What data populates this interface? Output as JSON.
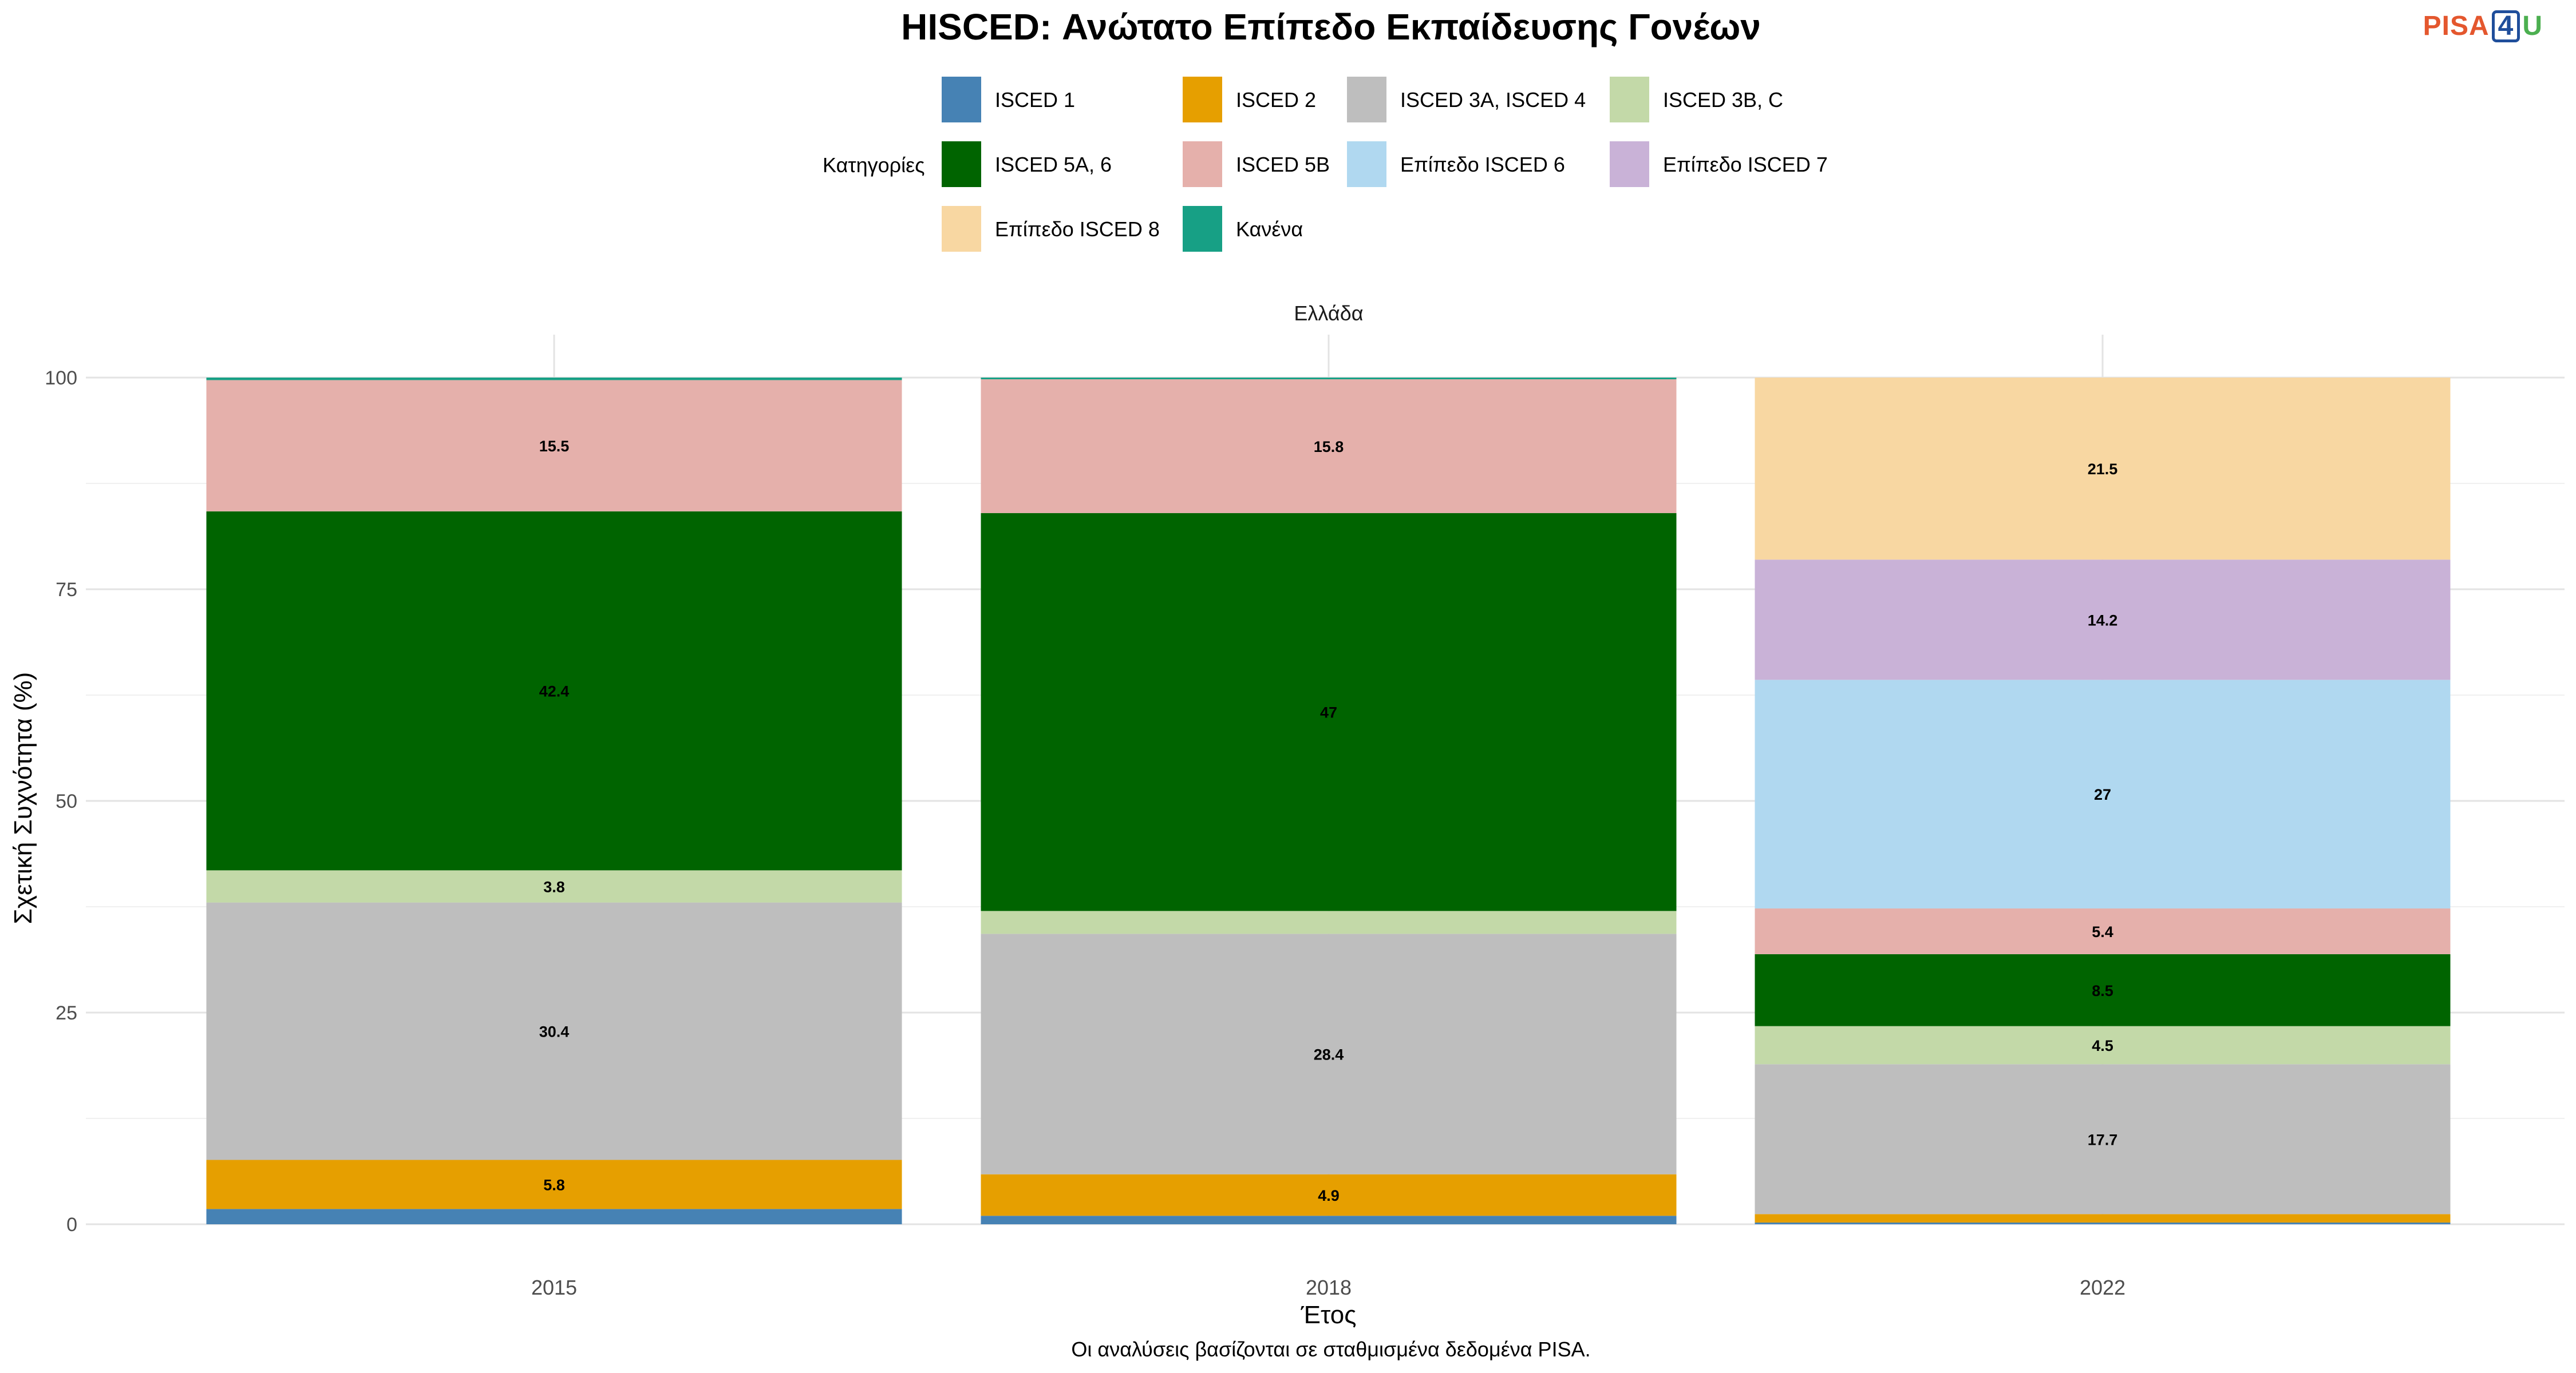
{
  "title": "HISCED: Ανώτατο Επίπεδο Εκπαίδευσης Γονέων",
  "logo": {
    "p1": "PISA",
    "p2": "4",
    "p3": "U"
  },
  "legend": {
    "title": "Κατηγορίες",
    "items": [
      {
        "name": "ISCED 1",
        "color": "#4682B4"
      },
      {
        "name": "ISCED 2",
        "color": "#E69F00"
      },
      {
        "name": "ISCED 3A, ISCED 4",
        "color": "#BEBEBE"
      },
      {
        "name": "ISCED 3B, C",
        "color": "#C3D9A8"
      },
      {
        "name": "ISCED 5A, 6",
        "color": "#006400"
      },
      {
        "name": "ISCED 5B",
        "color": "#E5B0AB"
      },
      {
        "name": "Επίπεδο ISCED 6",
        "color": "#B0D8F0"
      },
      {
        "name": "Επίπεδο ISCED 7",
        "color": "#C9B2D7"
      },
      {
        "name": "Επίπεδο ISCED 8",
        "color": "#F8D7A2"
      },
      {
        "name": "Κανένα",
        "color": "#17A085"
      }
    ]
  },
  "caption": "Οι αναλύσεις βασίζονται σε σταθμισμένα δεδομένα PISA.",
  "chart_data": {
    "type": "bar",
    "stacked": true,
    "facet_label": "Ελλάδα",
    "xlabel": "Έτος",
    "ylabel": "Σχετική Συχνότητα (%)",
    "ylim": [
      0,
      100
    ],
    "yticks": [
      0,
      25,
      50,
      75,
      100
    ],
    "categories": [
      "2015",
      "2018",
      "2022"
    ],
    "series": [
      {
        "name": "ISCED 1",
        "values": [
          1.8,
          1.0,
          0.2
        ]
      },
      {
        "name": "ISCED 2",
        "values": [
          5.8,
          4.9,
          1.0
        ]
      },
      {
        "name": "ISCED 3A, ISCED 4",
        "values": [
          30.4,
          28.4,
          17.7
        ]
      },
      {
        "name": "ISCED 3B, C",
        "values": [
          3.8,
          2.7,
          4.5
        ]
      },
      {
        "name": "ISCED 5A, 6",
        "values": [
          42.4,
          47,
          8.5
        ]
      },
      {
        "name": "ISCED 5B",
        "values": [
          15.5,
          15.8,
          5.4
        ]
      },
      {
        "name": "Επίπεδο ISCED 6",
        "values": [
          0,
          0,
          27
        ]
      },
      {
        "name": "Επίπεδο ISCED 7",
        "values": [
          0,
          0,
          14.2
        ]
      },
      {
        "name": "Επίπεδο ISCED 8",
        "values": [
          0,
          0,
          21.5
        ]
      },
      {
        "name": "Κανένα",
        "values": [
          0.3,
          0.2,
          0
        ]
      }
    ],
    "labels": [
      {
        "series": "ISCED 2",
        "values": [
          "5.8",
          "4.9",
          ""
        ]
      },
      {
        "series": "ISCED 3A, ISCED 4",
        "values": [
          "30.4",
          "28.4",
          "17.7"
        ]
      },
      {
        "series": "ISCED 3B, C",
        "values": [
          "3.8",
          "",
          "4.5"
        ]
      },
      {
        "series": "ISCED 5A, 6",
        "values": [
          "42.4",
          "47",
          "8.5"
        ]
      },
      {
        "series": "ISCED 5B",
        "values": [
          "15.5",
          "15.8",
          "5.4"
        ]
      },
      {
        "series": "Επίπεδο ISCED 6",
        "values": [
          "",
          "",
          "27"
        ]
      },
      {
        "series": "Επίπεδο ISCED 7",
        "values": [
          "",
          "",
          "14.2"
        ]
      },
      {
        "series": "Επίπεδο ISCED 8",
        "values": [
          "",
          "",
          "21.5"
        ]
      }
    ],
    "grid": true
  }
}
